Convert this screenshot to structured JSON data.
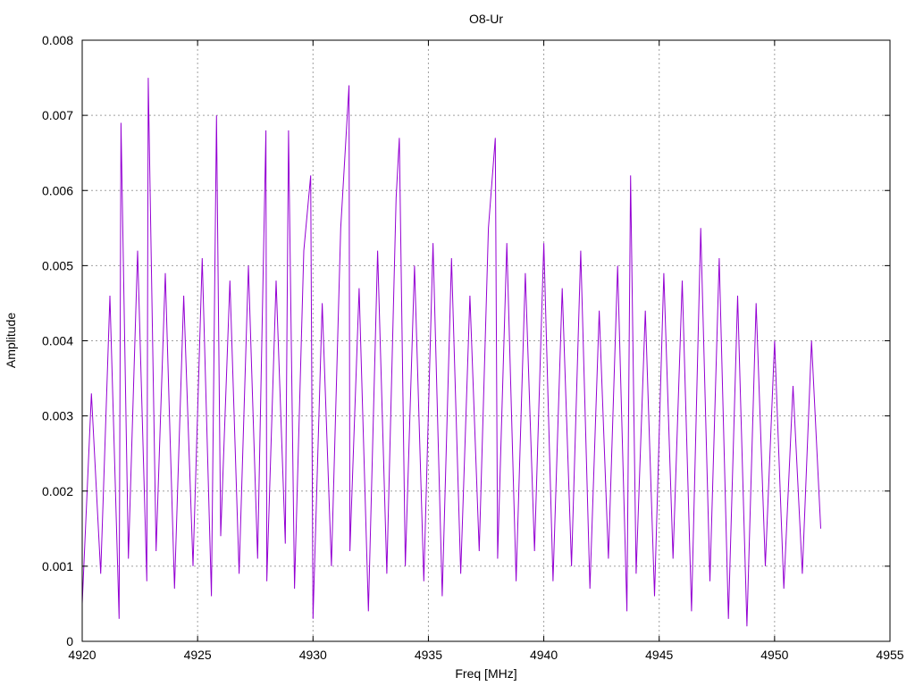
{
  "chart_data": {
    "type": "line",
    "title": "O8-Ur",
    "xlabel": "Freq [MHz]",
    "ylabel": "Amplitude",
    "xlim": [
      4920,
      4955
    ],
    "ylim": [
      0,
      0.008
    ],
    "xticks": [
      4920,
      4925,
      4930,
      4935,
      4940,
      4945,
      4950,
      4955
    ],
    "xtick_labels": [
      "4920",
      "4925",
      "4930",
      "4935",
      "4940",
      "4945",
      "4950",
      "4955"
    ],
    "yticks": [
      0,
      0.001,
      0.002,
      0.003,
      0.004,
      0.005,
      0.006,
      0.007,
      0.008
    ],
    "ytick_labels": [
      "0",
      "0.001",
      "0.002",
      "0.003",
      "0.004",
      "0.005",
      "0.006",
      "0.007",
      "0.008"
    ],
    "grid": true,
    "legend": "none",
    "series": [
      {
        "color": "#9400d3",
        "x": [
          4920.0,
          4920.4,
          4920.8,
          4921.2,
          4921.6,
          4921.68,
          4922.0,
          4922.4,
          4922.8,
          4922.86,
          4923.2,
          4923.6,
          4924.0,
          4924.4,
          4924.8,
          4925.2,
          4925.6,
          4925.82,
          4926.0,
          4926.4,
          4926.8,
          4927.2,
          4927.6,
          4927.96,
          4928.0,
          4928.4,
          4928.8,
          4928.94,
          4929.2,
          4929.6,
          4929.9,
          4930.0,
          4930.4,
          4930.8,
          4931.2,
          4931.56,
          4931.6,
          4932.0,
          4932.4,
          4932.8,
          4933.2,
          4933.6,
          4933.74,
          4934.0,
          4934.4,
          4934.8,
          4935.2,
          4935.6,
          4936.0,
          4936.4,
          4936.8,
          4937.2,
          4937.6,
          4937.9,
          4938.0,
          4938.4,
          4938.8,
          4939.2,
          4939.6,
          4940.0,
          4940.4,
          4940.8,
          4941.2,
          4941.6,
          4942.0,
          4942.4,
          4942.8,
          4943.2,
          4943.6,
          4943.76,
          4944.0,
          4944.4,
          4944.8,
          4945.2,
          4945.6,
          4946.0,
          4946.4,
          4946.8,
          4947.2,
          4947.6,
          4948.0,
          4948.4,
          4948.8,
          4949.2,
          4949.6,
          4950.0,
          4950.4,
          4950.8,
          4951.2,
          4951.6,
          4952.0
        ],
        "y": [
          0.0005,
          0.0033,
          0.0009,
          0.0046,
          0.0003,
          0.0069,
          0.0011,
          0.0052,
          0.0008,
          0.0075,
          0.0012,
          0.0049,
          0.0007,
          0.0046,
          0.001,
          0.0051,
          0.0006,
          0.007,
          0.0014,
          0.0048,
          0.0009,
          0.005,
          0.0011,
          0.0068,
          0.0008,
          0.0048,
          0.0013,
          0.0068,
          0.0007,
          0.0052,
          0.0062,
          0.0003,
          0.0045,
          0.001,
          0.0055,
          0.0074,
          0.0012,
          0.0047,
          0.0004,
          0.0052,
          0.0009,
          0.0059,
          0.0067,
          0.001,
          0.005,
          0.0008,
          0.0053,
          0.0006,
          0.0051,
          0.0009,
          0.0046,
          0.0012,
          0.0055,
          0.0067,
          0.0011,
          0.0053,
          0.0008,
          0.0049,
          0.0012,
          0.0053,
          0.0008,
          0.0047,
          0.001,
          0.0052,
          0.0007,
          0.0044,
          0.0011,
          0.005,
          0.0004,
          0.0062,
          0.0009,
          0.0044,
          0.0006,
          0.0049,
          0.0011,
          0.0048,
          0.0004,
          0.0055,
          0.0008,
          0.0051,
          0.0003,
          0.0046,
          0.0002,
          0.0045,
          0.001,
          0.004,
          0.0007,
          0.0034,
          0.0009,
          0.004,
          0.0015
        ]
      }
    ]
  }
}
